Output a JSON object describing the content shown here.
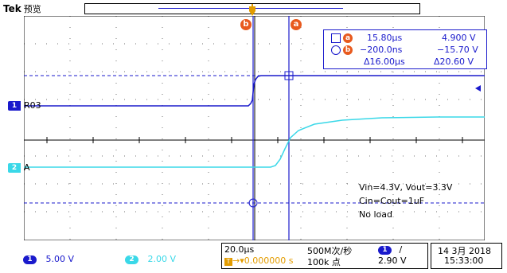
{
  "header": {
    "brand": "Tek",
    "mode": "预览"
  },
  "channels": {
    "ch1": {
      "number": "1",
      "label": "R03",
      "scale": "5.00 V",
      "color": "#1a1acc"
    },
    "ch2": {
      "number": "2",
      "label": "A",
      "scale": "2.00 V",
      "color": "#3ad8e8"
    }
  },
  "cursors": {
    "a_tag": "a",
    "b_tag": "b",
    "a_time": "15.80µs",
    "a_volt": "4.900 V",
    "b_time": "−200.0ns",
    "b_volt": "−15.70 V",
    "delta_time": "Δ16.00µs",
    "delta_volt": "Δ20.60 V"
  },
  "annotation": {
    "line1": "Vin=4.3V, Vout=3.3V",
    "line2": "Cin=Cout=1uF",
    "line3": "No load"
  },
  "status": {
    "horizontal_scale": "20.0µs",
    "trigger_delay": "→▾0.000000 s",
    "trigger_delay_icon": "T",
    "sample_rate": "500M次/秒",
    "record_length": "100k 点",
    "trigger_channel": "1",
    "trigger_slope": "∕",
    "trigger_level": "2.90 V",
    "date": "14 3月 2018",
    "time": "15:33:00"
  },
  "colors": {
    "ch1": "#1a1acc",
    "ch2": "#3ad8e8",
    "cursor": "#e85a1e",
    "trigger": "#e39c00"
  }
}
